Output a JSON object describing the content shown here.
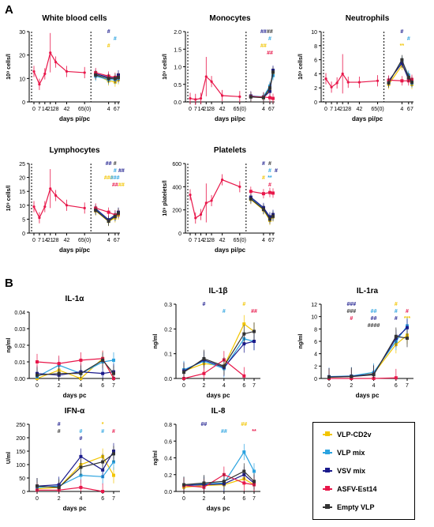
{
  "panels": {
    "A": "A",
    "B": "B"
  },
  "colors": {
    "VLP-CD2v": "#f2c500",
    "VLP mix": "#2ba3e0",
    "VSV mix": "#1a1a8c",
    "ASFV-Est14": "#e8174a",
    "Empty VLP": "#333333"
  },
  "legend": {
    "items": [
      {
        "label": "VLP-CD2v",
        "color": "#f2c500"
      },
      {
        "label": "VLP mix",
        "color": "#2ba3e0"
      },
      {
        "label": "VSV mix",
        "color": "#1a1a8c"
      },
      {
        "label": "ASFV-Est14",
        "color": "#e8174a"
      },
      {
        "label": "Empty VLP",
        "color": "#333333"
      }
    ]
  },
  "chart_data": [
    {
      "type": "line",
      "title": "White blood cells",
      "ylabel": "10⁹ cells/l",
      "xlabel": "days pi/pc",
      "ylim": [
        0,
        30
      ],
      "yticks": [
        0,
        10,
        20,
        30
      ],
      "xticks_pre": [
        "0",
        "7",
        "14",
        "21",
        "28",
        "42",
        "65(0)"
      ],
      "xticks_post": [
        "4",
        "6",
        "7"
      ],
      "pre_series": {
        "name": "ASFV-Est14",
        "x": [
          0,
          7,
          14,
          21,
          28,
          42,
          65
        ],
        "y": [
          13,
          7.5,
          12,
          21,
          17,
          13,
          12.5
        ]
      },
      "post_x": [
        0,
        4,
        6,
        7
      ],
      "post_series": [
        {
          "name": "VLP-CD2v",
          "values": [
            11.5,
            9,
            8.5,
            9.5
          ]
        },
        {
          "name": "VLP mix",
          "values": [
            11,
            9.5,
            9.5,
            10
          ]
        },
        {
          "name": "VSV mix",
          "values": [
            12,
            10.5,
            10,
            11.5
          ]
        },
        {
          "name": "ASFV-Est14",
          "values": [
            12.5,
            11,
            10.5,
            10.5
          ]
        },
        {
          "name": "Empty VLP",
          "values": [
            11.5,
            10,
            10,
            10.5
          ]
        }
      ],
      "annotations": [
        "#",
        "#",
        "#"
      ]
    },
    {
      "type": "line",
      "title": "Monocytes",
      "ylabel": "10⁹ cells/l",
      "xlabel": "days pi/pc",
      "ylim": [
        0,
        2.0
      ],
      "yticks": [
        0.0,
        0.5,
        1.0,
        1.5,
        2.0
      ],
      "xticks_pre": [
        "0",
        "7",
        "14",
        "21",
        "28",
        "42",
        "65(0)"
      ],
      "xticks_post": [
        "4",
        "6",
        "7"
      ],
      "pre_series": {
        "name": "ASFV-Est14",
        "x": [
          0,
          7,
          14,
          21,
          28,
          42,
          65
        ],
        "y": [
          0.1,
          0.07,
          0.1,
          0.72,
          0.58,
          0.18,
          0.15
        ]
      },
      "post_x": [
        0,
        4,
        6,
        7
      ],
      "post_series": [
        {
          "name": "VLP-CD2v",
          "values": [
            0.15,
            0.12,
            0.35,
            0.8
          ]
        },
        {
          "name": "VLP mix",
          "values": [
            0.16,
            0.15,
            0.45,
            0.75
          ]
        },
        {
          "name": "VSV mix",
          "values": [
            0.17,
            0.13,
            0.3,
            0.9
          ]
        },
        {
          "name": "ASFV-Est14",
          "values": [
            0.15,
            0.14,
            0.12,
            0.1
          ]
        },
        {
          "name": "Empty VLP",
          "values": [
            0.14,
            0.12,
            0.4,
            0.85
          ]
        }
      ],
      "annotations": [
        "##",
        "#",
        "##",
        "##",
        "##"
      ]
    },
    {
      "type": "line",
      "title": "Neutrophils",
      "ylabel": "10⁹ cells/l",
      "xlabel": "days pi/pc",
      "ylim": [
        0,
        10
      ],
      "yticks": [
        0,
        2,
        4,
        6,
        8,
        10
      ],
      "xticks_pre": [
        "0",
        "7",
        "14",
        "21",
        "28",
        "42",
        "65(0)"
      ],
      "xticks_post": [
        "4",
        "6",
        "7"
      ],
      "pre_series": {
        "name": "ASFV-Est14",
        "x": [
          0,
          7,
          14,
          21,
          28,
          42,
          65
        ],
        "y": [
          3.3,
          2.1,
          2.7,
          4,
          2.8,
          2.8,
          3
        ]
      },
      "post_x": [
        0,
        4,
        6,
        7
      ],
      "post_series": [
        {
          "name": "VLP-CD2v",
          "values": [
            2.5,
            5.2,
            3.5,
            2.5
          ]
        },
        {
          "name": "VLP mix",
          "values": [
            2.8,
            5.8,
            3.8,
            2.7
          ]
        },
        {
          "name": "VSV mix",
          "values": [
            3.0,
            5.5,
            3.2,
            3.0
          ]
        },
        {
          "name": "ASFV-Est14",
          "values": [
            3.1,
            3.0,
            3.0,
            3.2
          ]
        },
        {
          "name": "Empty VLP",
          "values": [
            2.7,
            6.0,
            3.5,
            2.8
          ]
        }
      ],
      "annotations": [
        "#",
        "#",
        "**"
      ]
    },
    {
      "type": "line",
      "title": "Lymphocytes",
      "ylabel": "10⁹ cells/l",
      "xlabel": "days pi/pc",
      "ylim": [
        0,
        25
      ],
      "yticks": [
        0,
        5,
        10,
        15,
        20,
        25
      ],
      "xticks_pre": [
        "0",
        "7",
        "14",
        "21",
        "28",
        "42",
        "65(0)"
      ],
      "xticks_post": [
        "4",
        "6",
        "7"
      ],
      "pre_series": {
        "name": "ASFV-Est14",
        "x": [
          0,
          7,
          14,
          21,
          28,
          42,
          65
        ],
        "y": [
          9.5,
          5.5,
          9.5,
          16,
          13.5,
          10,
          9
        ]
      },
      "post_x": [
        0,
        4,
        6,
        7
      ],
      "post_series": [
        {
          "name": "VLP-CD2v",
          "values": [
            8,
            4.2,
            5.5,
            6.5
          ]
        },
        {
          "name": "VLP mix",
          "values": [
            8.5,
            4.5,
            6,
            7
          ]
        },
        {
          "name": "VSV mix",
          "values": [
            8.8,
            4.8,
            6.5,
            7.5
          ]
        },
        {
          "name": "ASFV-Est14",
          "values": [
            9,
            7.5,
            6.5,
            7
          ]
        },
        {
          "name": "Empty VLP",
          "values": [
            8.2,
            4.3,
            6,
            7.2
          ]
        }
      ],
      "annotations": [
        "##",
        "#",
        "###",
        "##",
        "#",
        "##",
        "###",
        "##"
      ]
    },
    {
      "type": "line",
      "title": "Platelets",
      "ylabel": "10⁹ platelets/l",
      "xlabel": "days pi/pc",
      "ylim": [
        0,
        600
      ],
      "yticks": [
        0,
        200,
        400,
        600
      ],
      "xticks_pre": [
        "0",
        "7",
        "14",
        "21",
        "28",
        "42",
        "65(0)"
      ],
      "xticks_post": [
        "4",
        "6",
        "7"
      ],
      "pre_series": {
        "name": "ASFV-Est14",
        "x": [
          0,
          7,
          14,
          21,
          28,
          42,
          65
        ],
        "y": [
          330,
          130,
          160,
          260,
          280,
          460,
          400
        ]
      },
      "post_x": [
        0,
        4,
        6,
        7
      ],
      "post_series": [
        {
          "name": "VLP-CD2v",
          "values": [
            290,
            200,
            110,
            140
          ]
        },
        {
          "name": "VLP mix",
          "values": [
            300,
            210,
            130,
            150
          ]
        },
        {
          "name": "VSV mix",
          "values": [
            310,
            220,
            140,
            160
          ]
        },
        {
          "name": "ASFV-Est14",
          "values": [
            360,
            340,
            350,
            345
          ]
        },
        {
          "name": "Empty VLP",
          "values": [
            295,
            205,
            120,
            145
          ]
        }
      ],
      "annotations": [
        "#",
        "#",
        "#",
        "#",
        "#",
        "#",
        "**"
      ]
    },
    {
      "type": "line",
      "title": "IL-1α",
      "ylabel": "ng/ml",
      "xlabel": "days pc",
      "ylim": [
        0,
        0.04
      ],
      "yticks": [
        0.0,
        0.01,
        0.02,
        0.03,
        0.04
      ],
      "x": [
        0,
        2,
        4,
        6,
        7
      ],
      "series": [
        {
          "name": "VLP-CD2v",
          "values": [
            0.0,
            0.005,
            0.0,
            0.012,
            0.0
          ]
        },
        {
          "name": "VLP mix",
          "values": [
            0.001,
            0.008,
            0.003,
            0.01,
            0.011
          ]
        },
        {
          "name": "VSV mix",
          "values": [
            0.003,
            0.002,
            0.004,
            0.003,
            0.004
          ]
        },
        {
          "name": "ASFV-Est14",
          "values": [
            0.01,
            0.009,
            0.011,
            0.012,
            0.0
          ]
        },
        {
          "name": "Empty VLP",
          "values": [
            0.002,
            0.003,
            0.003,
            0.011,
            0.003
          ]
        }
      ]
    },
    {
      "type": "line",
      "title": "IL-1β",
      "ylabel": "ng/ml",
      "xlabel": "days pc",
      "ylim": [
        0,
        0.3
      ],
      "yticks": [
        0.0,
        0.1,
        0.2,
        0.3
      ],
      "x": [
        0,
        2,
        4,
        6,
        7
      ],
      "series": [
        {
          "name": "VLP-CD2v",
          "values": [
            0.03,
            0.06,
            0.05,
            0.22,
            0.19
          ]
        },
        {
          "name": "VLP mix",
          "values": [
            0.035,
            0.07,
            0.04,
            0.16,
            0.15
          ]
        },
        {
          "name": "VSV mix",
          "values": [
            0.03,
            0.075,
            0.045,
            0.14,
            0.15
          ]
        },
        {
          "name": "ASFV-Est14",
          "values": [
            0.0,
            0.02,
            0.075,
            0.01,
            null
          ]
        },
        {
          "name": "Empty VLP",
          "values": [
            0.025,
            0.08,
            0.05,
            0.18,
            0.19
          ]
        }
      ],
      "annotations": [
        "#",
        "#",
        "#",
        "##"
      ]
    },
    {
      "type": "line",
      "title": "IL-1ra",
      "ylabel": "ng/ml",
      "xlabel": "days pc",
      "ylim": [
        0,
        12
      ],
      "yticks": [
        0,
        2,
        4,
        6,
        8,
        10,
        12
      ],
      "x": [
        0,
        2,
        4,
        6,
        7
      ],
      "series": [
        {
          "name": "VLP-CD2v",
          "values": [
            0.2,
            0.3,
            0.8,
            5.5,
            7
          ]
        },
        {
          "name": "VLP mix",
          "values": [
            0.3,
            0.4,
            1.0,
            6.0,
            8.5
          ]
        },
        {
          "name": "VSV mix",
          "values": [
            0.25,
            0.35,
            0.7,
            6.5,
            8.2
          ]
        },
        {
          "name": "ASFV-Est14",
          "values": [
            0.0,
            0.0,
            0.0,
            0.1,
            null
          ]
        },
        {
          "name": "Empty VLP",
          "values": [
            0.2,
            0.3,
            0.6,
            6.8,
            6.5
          ]
        }
      ],
      "annotations": [
        "###",
        "##",
        "#",
        "#",
        "###",
        "##",
        "#",
        "***",
        "#",
        "####",
        "#"
      ]
    },
    {
      "type": "line",
      "title": "IFN-α",
      "ylabel": "U/ml",
      "xlabel": "days pc",
      "ylim": [
        0,
        250
      ],
      "yticks": [
        0,
        50,
        100,
        150,
        200,
        250
      ],
      "x": [
        0,
        2,
        4,
        6,
        7
      ],
      "series": [
        {
          "name": "VLP-CD2v",
          "values": [
            10,
            15,
            100,
            130,
            60
          ]
        },
        {
          "name": "VLP mix",
          "values": [
            15,
            20,
            60,
            55,
            110
          ]
        },
        {
          "name": "VSV mix",
          "values": [
            20,
            25,
            130,
            80,
            150
          ]
        },
        {
          "name": "ASFV-Est14",
          "values": [
            5,
            5,
            15,
            0,
            null
          ]
        },
        {
          "name": "Empty VLP",
          "values": [
            20,
            15,
            90,
            110,
            140
          ]
        }
      ],
      "annotations": [
        "#",
        "#",
        "*",
        "#",
        "#",
        "#",
        "#"
      ]
    },
    {
      "type": "line",
      "title": "IL-8",
      "ylabel": "ng/ml",
      "xlabel": "days pc",
      "ylim": [
        0,
        0.8
      ],
      "yticks": [
        0.0,
        0.2,
        0.4,
        0.6,
        0.8
      ],
      "x": [
        0,
        2,
        4,
        6,
        7
      ],
      "series": [
        {
          "name": "VLP-CD2v",
          "values": [
            0.05,
            0.07,
            0.08,
            0.15,
            0.08
          ]
        },
        {
          "name": "VLP mix",
          "values": [
            0.08,
            0.09,
            0.1,
            0.47,
            0.24
          ]
        },
        {
          "name": "VSV mix",
          "values": [
            0.07,
            0.08,
            0.09,
            0.2,
            0.1
          ]
        },
        {
          "name": "ASFV-Est14",
          "values": [
            0.07,
            0.05,
            0.2,
            0.1,
            0.08
          ]
        },
        {
          "name": "Empty VLP",
          "values": [
            0.08,
            0.1,
            0.12,
            0.24,
            0.12
          ]
        }
      ],
      "annotations": [
        "##",
        "##",
        "##",
        "**"
      ]
    }
  ]
}
